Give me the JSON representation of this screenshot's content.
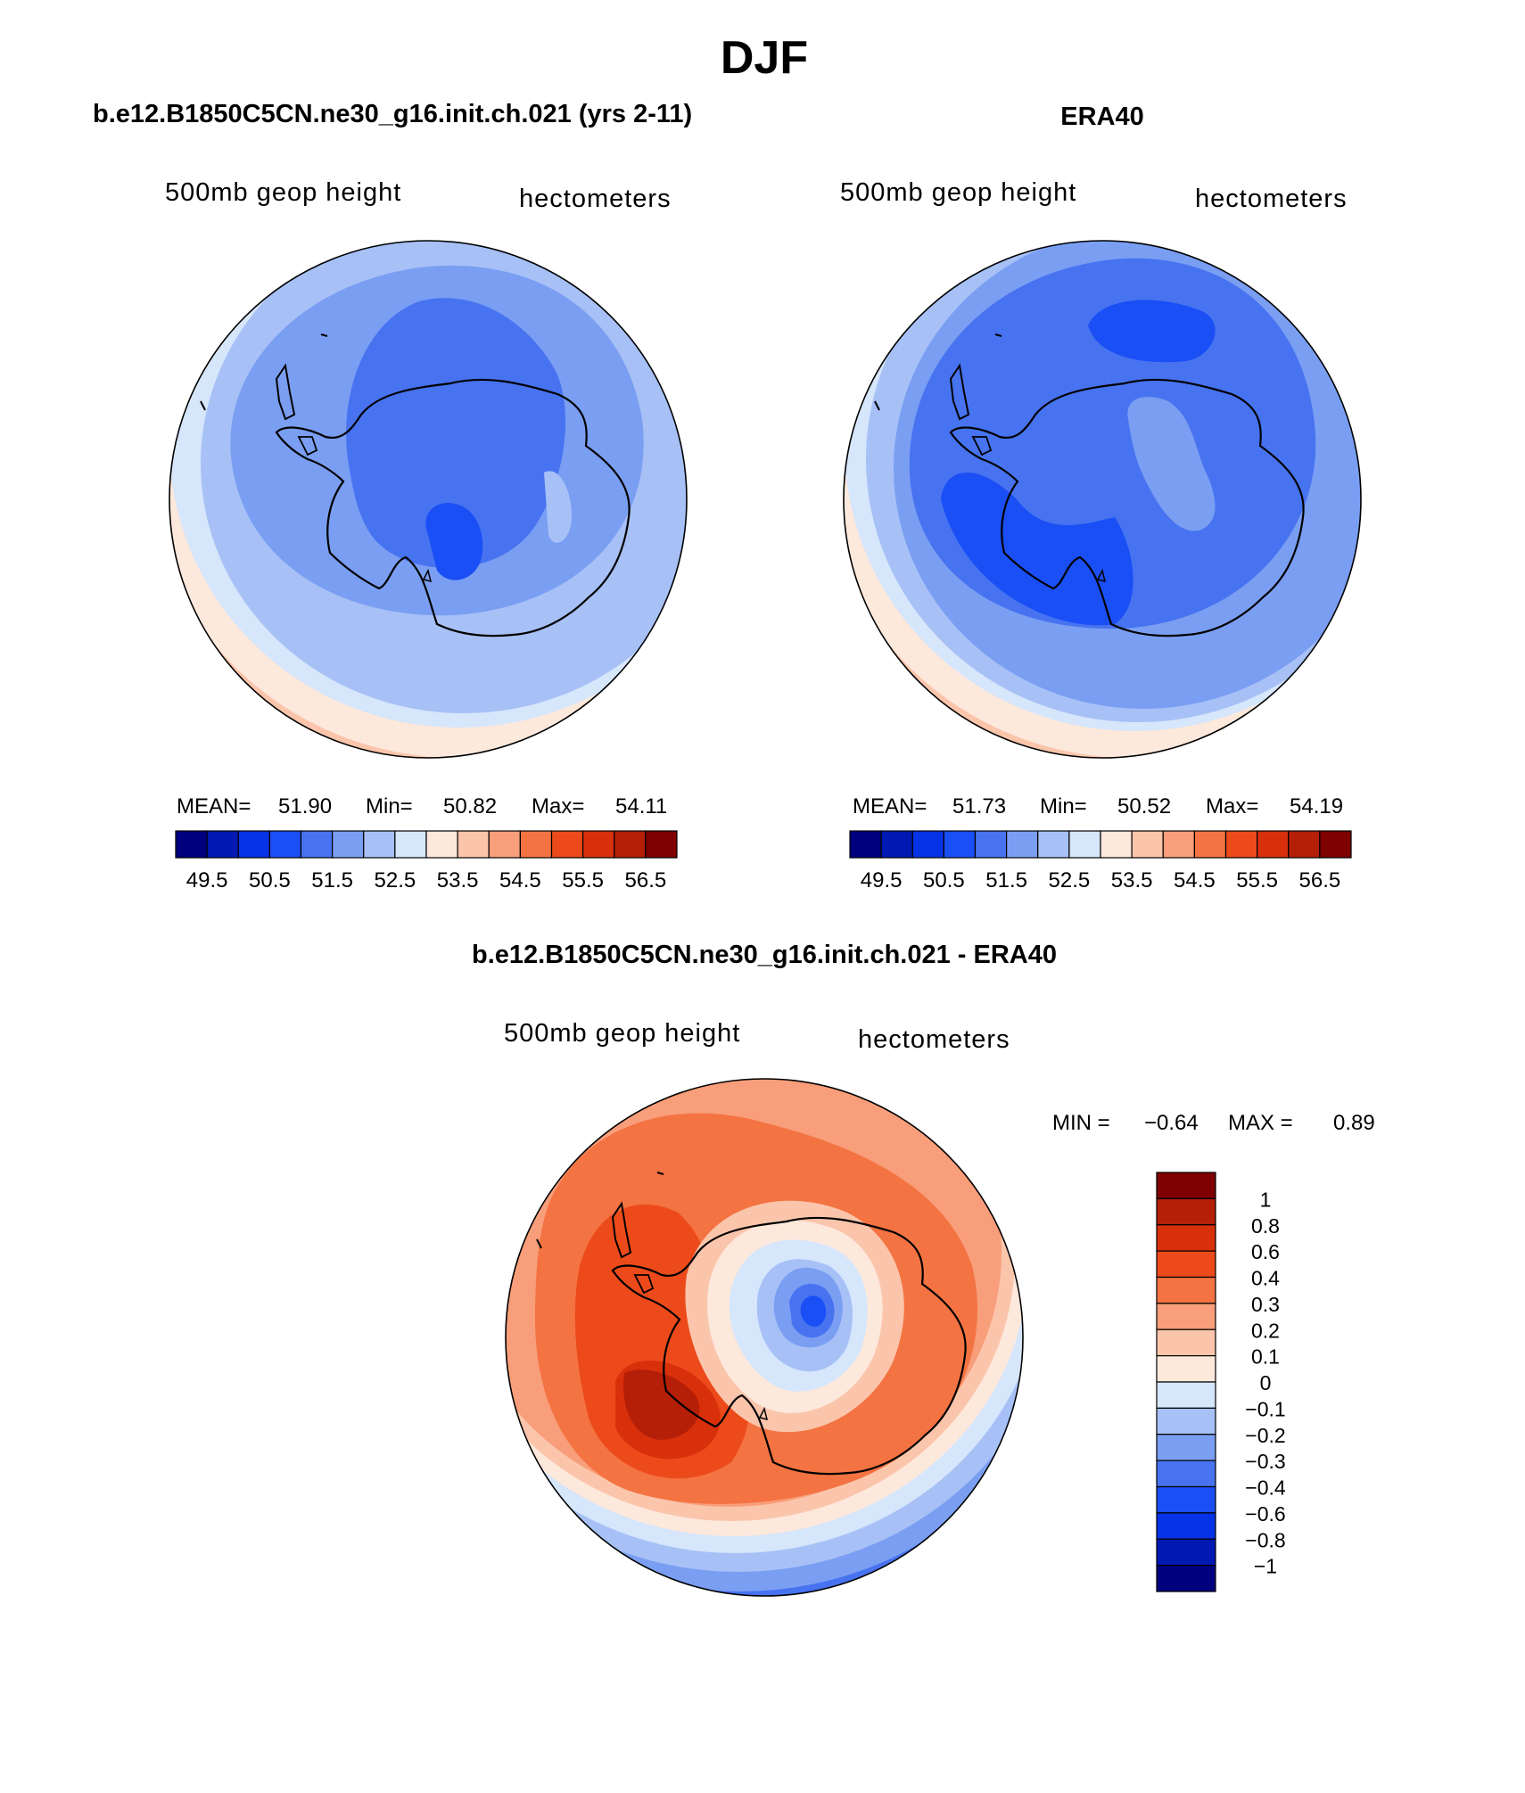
{
  "figure": {
    "season": "DJF"
  },
  "colors": {
    "abs": [
      "#00007f",
      "#0019b3",
      "#0733e6",
      "#1a4ff5",
      "#4773f0",
      "#7a9ef2",
      "#a7c1f7",
      "#d6e6fb",
      "#fde8dc",
      "#fbc5ab",
      "#f89e7a",
      "#f47342",
      "#ec4a1a",
      "#d9300c",
      "#b51f08",
      "#7f0000"
    ],
    "diff": [
      "#00007f",
      "#0019b3",
      "#0733e6",
      "#1a4ff5",
      "#4773f0",
      "#7a9ef2",
      "#a7c1f7",
      "#d6e6fb",
      "#fde8dc",
      "#fbc5ab",
      "#f89e7a",
      "#f47342",
      "#ec4a1a",
      "#d9300c",
      "#b51f08",
      "#7f0000"
    ]
  },
  "panels": {
    "model": {
      "title": "b.e12.B1850C5CN.ne30_g16.init.ch.021 (yrs 2-11)",
      "left_label": "500mb geop height",
      "right_label": "hectometers",
      "stats": {
        "mean_label": "MEAN=",
        "mean": "51.90",
        "min_label": "Min=",
        "min": "50.82",
        "max_label": "Max=",
        "max": "54.11"
      },
      "colorbar_labels": [
        "49.5",
        "50.5",
        "51.5",
        "52.5",
        "53.5",
        "54.5",
        "55.5",
        "56.5"
      ]
    },
    "obs": {
      "title": "ERA40",
      "left_label": "500mb geop height",
      "right_label": "hectometers",
      "stats": {
        "mean_label": "MEAN=",
        "mean": "51.73",
        "min_label": "Min=",
        "min": "50.52",
        "max_label": "Max=",
        "max": "54.19"
      },
      "colorbar_labels": [
        "49.5",
        "50.5",
        "51.5",
        "52.5",
        "53.5",
        "54.5",
        "55.5",
        "56.5"
      ]
    },
    "diff": {
      "title": "b.e12.B1850C5CN.ne30_g16.init.ch.021 - ERA40",
      "left_label": "500mb geop height",
      "right_label": "hectometers",
      "stats": {
        "min_label": "MIN =",
        "min": "−0.64",
        "max_label": "MAX =",
        "max": "0.89"
      },
      "colorbar_labels": [
        "1",
        "0.8",
        "0.6",
        "0.4",
        "0.3",
        "0.2",
        "0.1",
        "0",
        "−0.1",
        "−0.2",
        "−0.3",
        "−0.4",
        "−0.6",
        "−0.8",
        "−1"
      ]
    }
  }
}
